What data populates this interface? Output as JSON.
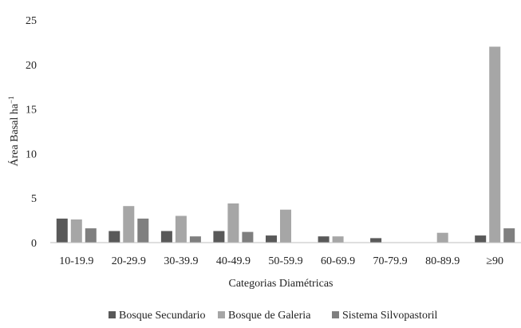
{
  "chart_data": {
    "type": "bar",
    "title": "",
    "xlabel": "Categorias Diamétricas",
    "ylabel": "Área Basal ha",
    "ylabel_sup": "−1",
    "ylim": [
      0,
      25
    ],
    "yticks": [
      "0",
      "5",
      "10",
      "15",
      "20",
      "25"
    ],
    "ytick_values": [
      0,
      5,
      10,
      15,
      20,
      25
    ],
    "grid": false,
    "legend_position": "bottom",
    "categories": [
      "10-19.9",
      "20-29.9",
      "30-39.9",
      "40-49.9",
      "50-59.9",
      "60-69.9",
      "70-79.9",
      "80-89.9",
      "≥90"
    ],
    "series": [
      {
        "name": "Bosque Secundario",
        "color": "#595959",
        "values": [
          2.7,
          1.3,
          1.3,
          1.3,
          0.8,
          0.7,
          0.5,
          0,
          0.8
        ]
      },
      {
        "name": "Bosque de Galeria",
        "color": "#a6a6a6",
        "values": [
          2.6,
          4.1,
          3.0,
          4.4,
          3.7,
          0.7,
          0,
          1.1,
          22.0
        ]
      },
      {
        "name": "Sistema Silvopastoril",
        "color": "#7f7f7f",
        "values": [
          1.6,
          2.7,
          0.7,
          1.2,
          0,
          0,
          0,
          0,
          1.6
        ]
      }
    ]
  }
}
